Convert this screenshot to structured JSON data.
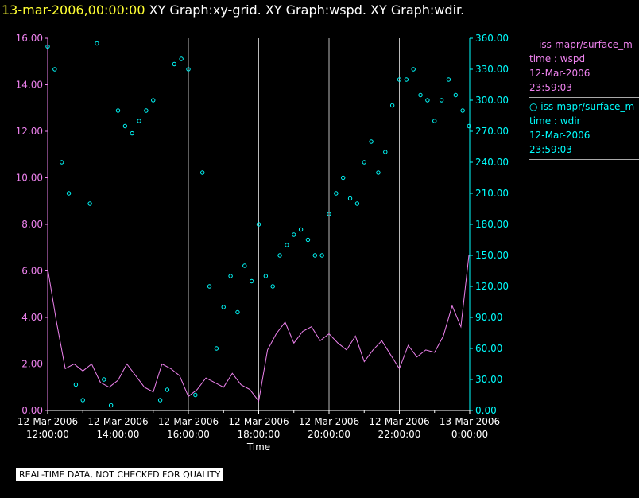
{
  "header": {
    "date": "13-mar-2006,00:00:00",
    "graphs": "XY Graph:xy-grid.  XY Graph:wspd.  XY Graph:wdir."
  },
  "legend": [
    {
      "name": "—iss-mapr/surface_m",
      "field": "time : wspd",
      "date": "12-Mar-2006",
      "time": "23:59:03",
      "color": "#ee82ee"
    },
    {
      "name": "○ iss-mapr/surface_m",
      "field": "time : wdir",
      "date": "12-Mar-2006",
      "time": "23:59:03",
      "color": "#00ffff"
    }
  ],
  "footer": {
    "quality_note": "REAL-TIME DATA, NOT CHECKED FOR QUALITY"
  },
  "chart_data": {
    "type": "line",
    "xlabel": "Time",
    "x_ticks": [
      [
        "12-Mar-2006",
        "12:00:00"
      ],
      [
        "12-Mar-2006",
        "14:00:00"
      ],
      [
        "12-Mar-2006",
        "16:00:00"
      ],
      [
        "12-Mar-2006",
        "18:00:00"
      ],
      [
        "12-Mar-2006",
        "20:00:00"
      ],
      [
        "12-Mar-2006",
        "22:00:00"
      ],
      [
        "13-Mar-2006",
        "0:00:00"
      ]
    ],
    "x_range_hours": [
      12,
      24
    ],
    "y_left": {
      "ticks": [
        "0.00",
        "2.00",
        "4.00",
        "6.00",
        "8.00",
        "10.00",
        "12.00",
        "14.00",
        "16.00"
      ],
      "range": [
        0,
        16
      ],
      "color": "#ee82ee"
    },
    "y_right": {
      "ticks": [
        "0.00",
        "30.00",
        "60.00",
        "90.00",
        "120.00",
        "150.00",
        "180.00",
        "210.00",
        "240.00",
        "270.00",
        "300.00",
        "330.00",
        "360.00"
      ],
      "range": [
        0,
        360
      ],
      "color": "#00ffff"
    },
    "grid": "vertical",
    "series": [
      {
        "field": "wspd",
        "style": "line",
        "color": "#ee82ee",
        "axis": "left",
        "x_hours": [
          12.0,
          12.25,
          12.5,
          12.75,
          13.0,
          13.25,
          13.5,
          13.75,
          14.0,
          14.25,
          14.5,
          14.75,
          15.0,
          15.25,
          15.5,
          15.75,
          16.0,
          16.25,
          16.5,
          16.75,
          17.0,
          17.25,
          17.5,
          17.75,
          18.0,
          18.25,
          18.5,
          18.75,
          19.0,
          19.25,
          19.5,
          19.75,
          20.0,
          20.25,
          20.5,
          20.75,
          21.0,
          21.25,
          21.5,
          21.75,
          22.0,
          22.25,
          22.5,
          22.75,
          23.0,
          23.25,
          23.5,
          23.75,
          23.98
        ],
        "values": [
          6.1,
          3.8,
          1.8,
          2.0,
          1.7,
          2.0,
          1.2,
          1.0,
          1.3,
          2.0,
          1.5,
          1.0,
          0.8,
          2.0,
          1.8,
          1.5,
          0.6,
          0.9,
          1.4,
          1.2,
          1.0,
          1.6,
          1.1,
          0.9,
          0.4,
          2.6,
          3.3,
          3.8,
          2.9,
          3.4,
          3.6,
          3.0,
          3.3,
          2.9,
          2.6,
          3.2,
          2.1,
          2.6,
          3.0,
          2.4,
          1.8,
          2.8,
          2.3,
          2.6,
          2.5,
          3.2,
          4.5,
          3.6,
          6.7
        ]
      },
      {
        "field": "wdir",
        "style": "scatter",
        "color": "#00ffff",
        "axis": "right",
        "x_hours": [
          12.0,
          12.2,
          12.4,
          12.6,
          12.8,
          13.0,
          13.2,
          13.4,
          13.6,
          13.8,
          14.0,
          14.2,
          14.4,
          14.6,
          14.8,
          15.0,
          15.2,
          15.4,
          15.6,
          15.8,
          16.0,
          16.2,
          16.4,
          16.6,
          16.8,
          17.0,
          17.2,
          17.4,
          17.6,
          17.8,
          18.0,
          18.2,
          18.4,
          18.6,
          18.8,
          19.0,
          19.2,
          19.4,
          19.6,
          19.8,
          20.0,
          20.2,
          20.4,
          20.6,
          20.8,
          21.0,
          21.2,
          21.4,
          21.6,
          21.8,
          22.0,
          22.2,
          22.4,
          22.6,
          22.8,
          23.0,
          23.2,
          23.4,
          23.6,
          23.8,
          23.98
        ],
        "values": [
          352,
          330,
          240,
          210,
          25,
          10,
          200,
          355,
          30,
          5,
          290,
          275,
          268,
          280,
          290,
          300,
          10,
          20,
          335,
          340,
          330,
          15,
          230,
          120,
          60,
          100,
          130,
          95,
          140,
          125,
          180,
          130,
          120,
          150,
          160,
          170,
          175,
          165,
          150,
          150,
          190,
          210,
          225,
          205,
          200,
          240,
          260,
          230,
          250,
          295,
          320,
          320,
          330,
          305,
          300,
          280,
          300,
          320,
          305,
          290,
          275
        ]
      }
    ]
  }
}
